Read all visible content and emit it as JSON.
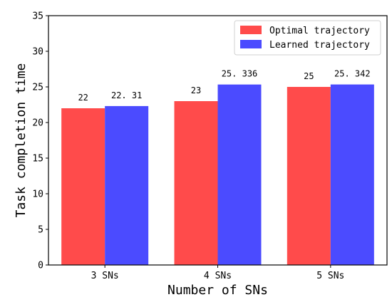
{
  "chart_data": {
    "type": "bar",
    "title": "",
    "xlabel": "Number of SNs",
    "ylabel": "Task completion time",
    "categories": [
      "3 SNs",
      "4 SNs",
      "5 SNs"
    ],
    "series": [
      {
        "name": "Optimal trajectory",
        "color": "#ff4b4b",
        "values": [
          22,
          23,
          25
        ],
        "labels": [
          "22",
          "23",
          "25"
        ]
      },
      {
        "name": "Learned trajectory",
        "color": "#4b4bff",
        "values": [
          22.31,
          25.336,
          25.342
        ],
        "labels": [
          "22. 31",
          "25. 336",
          "25. 342"
        ]
      }
    ],
    "ylim": [
      0,
      35
    ],
    "yticks": [
      0,
      5,
      10,
      15,
      20,
      25,
      30,
      35
    ],
    "legend": "top-right",
    "grid": false
  }
}
